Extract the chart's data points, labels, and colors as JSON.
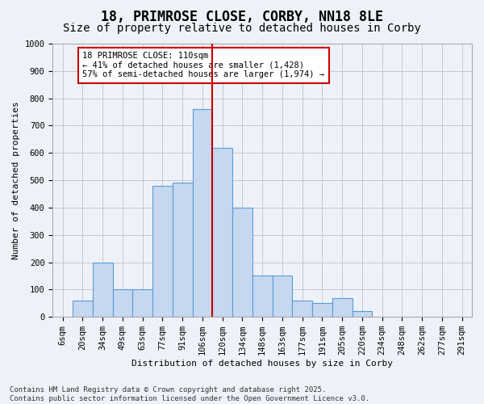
{
  "title1": "18, PRIMROSE CLOSE, CORBY, NN18 8LE",
  "title2": "Size of property relative to detached houses in Corby",
  "xlabel": "Distribution of detached houses by size in Corby",
  "ylabel": "Number of detached properties",
  "categories": [
    "6sqm",
    "20sqm",
    "34sqm",
    "49sqm",
    "63sqm",
    "77sqm",
    "91sqm",
    "106sqm",
    "120sqm",
    "134sqm",
    "148sqm",
    "163sqm",
    "177sqm",
    "191sqm",
    "205sqm",
    "220sqm",
    "234sqm",
    "248sqm",
    "262sqm",
    "277sqm",
    "291sqm"
  ],
  "bar_values": [
    0,
    60,
    200,
    100,
    100,
    480,
    490,
    760,
    620,
    400,
    150,
    150,
    60,
    50,
    70,
    20,
    0,
    0,
    0,
    0,
    0
  ],
  "bar_color": "#c5d8f0",
  "bar_edge_color": "#5b9bd5",
  "ref_line_x": 7.5,
  "ref_line_color": "#cc0000",
  "annotation_text": "18 PRIMROSE CLOSE: 110sqm\n← 41% of detached houses are smaller (1,428)\n57% of semi-detached houses are larger (1,974) →",
  "annotation_box_color": "#ffffff",
  "annotation_box_edge": "#cc0000",
  "ylim": [
    0,
    1000
  ],
  "yticks": [
    0,
    100,
    200,
    300,
    400,
    500,
    600,
    700,
    800,
    900,
    1000
  ],
  "footnote": "Contains HM Land Registry data © Crown copyright and database right 2025.\nContains public sector information licensed under the Open Government Licence v3.0.",
  "bg_color": "#eef2f8",
  "grid_color": "#c0c8d8",
  "title_fontsize": 12,
  "subtitle_fontsize": 10,
  "axis_fontsize": 8,
  "tick_fontsize": 7.5,
  "annotation_fontsize": 7.5,
  "footnote_fontsize": 6.5
}
